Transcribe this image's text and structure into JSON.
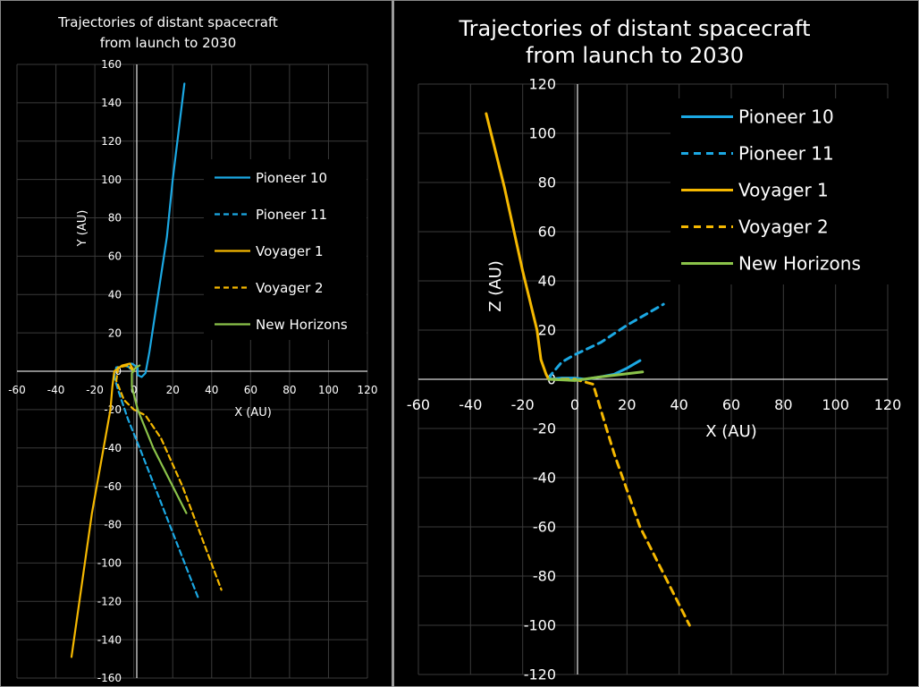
{
  "chart_data": [
    {
      "type": "line",
      "title": [
        "Trajectories of distant spacecraft",
        "from launch to 2030"
      ],
      "xlabel": "X (AU)",
      "ylabel": "Y (AU)",
      "xlim": [
        -60,
        120
      ],
      "ylim": [
        -160,
        160
      ],
      "xticks": [
        -60,
        -40,
        -20,
        0,
        20,
        40,
        60,
        80,
        100,
        120
      ],
      "yticks": [
        -160,
        -140,
        -120,
        -100,
        -80,
        -60,
        -40,
        -20,
        0,
        20,
        40,
        60,
        80,
        100,
        120,
        140,
        160
      ],
      "grid": true,
      "legend": "right",
      "series": [
        {
          "name": "Pioneer 10",
          "color": "#1ba8e3",
          "dash": false,
          "x": [
            0,
            -2,
            -5,
            -1,
            2,
            2,
            4,
            6,
            8,
            11,
            14,
            17,
            20,
            23,
            26
          ],
          "y": [
            0,
            2,
            3,
            4,
            2,
            -2,
            -3,
            -1,
            10,
            30,
            50,
            70,
            100,
            125,
            150
          ]
        },
        {
          "name": "Pioneer 11",
          "color": "#1ba8e3",
          "dash": true,
          "x": [
            0,
            -4,
            -9,
            -10,
            -8,
            -3,
            3,
            33
          ],
          "y": [
            0,
            3,
            2,
            -3,
            -10,
            -25,
            -40,
            -118
          ]
        },
        {
          "name": "Voyager 1",
          "color": "#f5b800",
          "dash": false,
          "x": [
            0,
            -2,
            -6,
            -10,
            -11,
            -12,
            -21.5,
            -32
          ],
          "y": [
            0,
            4,
            3,
            0,
            -8,
            -20,
            -74,
            -149
          ]
        },
        {
          "name": "Voyager 2",
          "color": "#f5b800",
          "dash": true,
          "x": [
            0,
            -3,
            -8,
            -9,
            -5,
            0,
            6,
            14,
            25,
            45
          ],
          "y": [
            0,
            3,
            2,
            -5,
            -15,
            -20,
            -23,
            -35,
            -60,
            -114
          ]
        },
        {
          "name": "New Horizons",
          "color": "#8bc34a",
          "dash": false,
          "x": [
            3,
            1,
            -1,
            -1,
            2,
            10,
            27
          ],
          "y": [
            3,
            2,
            -1,
            -8,
            -20,
            -40,
            -74
          ]
        }
      ]
    },
    {
      "type": "line",
      "title": [
        "Trajectories of distant spacecraft",
        "from launch to 2030"
      ],
      "xlabel": "X (AU)",
      "ylabel": "Z (AU)",
      "xlim": [
        -60,
        120
      ],
      "ylim": [
        -120,
        120
      ],
      "xticks": [
        -60,
        -40,
        -20,
        0,
        20,
        40,
        60,
        80,
        100,
        120
      ],
      "yticks": [
        -120,
        -100,
        -80,
        -60,
        -40,
        -20,
        0,
        20,
        40,
        60,
        80,
        100,
        120
      ],
      "grid": true,
      "legend": "top-right",
      "series": [
        {
          "name": "Pioneer 10",
          "color": "#1ba8e3",
          "dash": false,
          "x": [
            -10,
            -5,
            0,
            4,
            10,
            15,
            20,
            25
          ],
          "y": [
            0,
            0.5,
            0.5,
            0,
            1,
            2,
            4.5,
            7.6
          ]
        },
        {
          "name": "Pioneer 11",
          "color": "#1ba8e3",
          "dash": true,
          "x": [
            -10,
            -9,
            -5,
            0,
            10,
            20,
            34
          ],
          "y": [
            0,
            2,
            7,
            10,
            15,
            22,
            30.5
          ]
        },
        {
          "name": "Voyager 1",
          "color": "#f5b800",
          "dash": false,
          "x": [
            -10,
            -11,
            -13,
            -14.5,
            -20,
            -27,
            -34
          ],
          "y": [
            0,
            2,
            8,
            20,
            44,
            78,
            108
          ]
        },
        {
          "name": "Voyager 2",
          "color": "#f5b800",
          "dash": true,
          "x": [
            -10,
            0,
            7,
            15,
            25,
            44
          ],
          "y": [
            0,
            0,
            -2,
            -30,
            -60,
            -100
          ]
        },
        {
          "name": "New Horizons",
          "color": "#8bc34a",
          "dash": false,
          "x": [
            -10,
            0,
            10,
            26
          ],
          "y": [
            0,
            -0.5,
            1,
            3
          ]
        }
      ]
    }
  ]
}
